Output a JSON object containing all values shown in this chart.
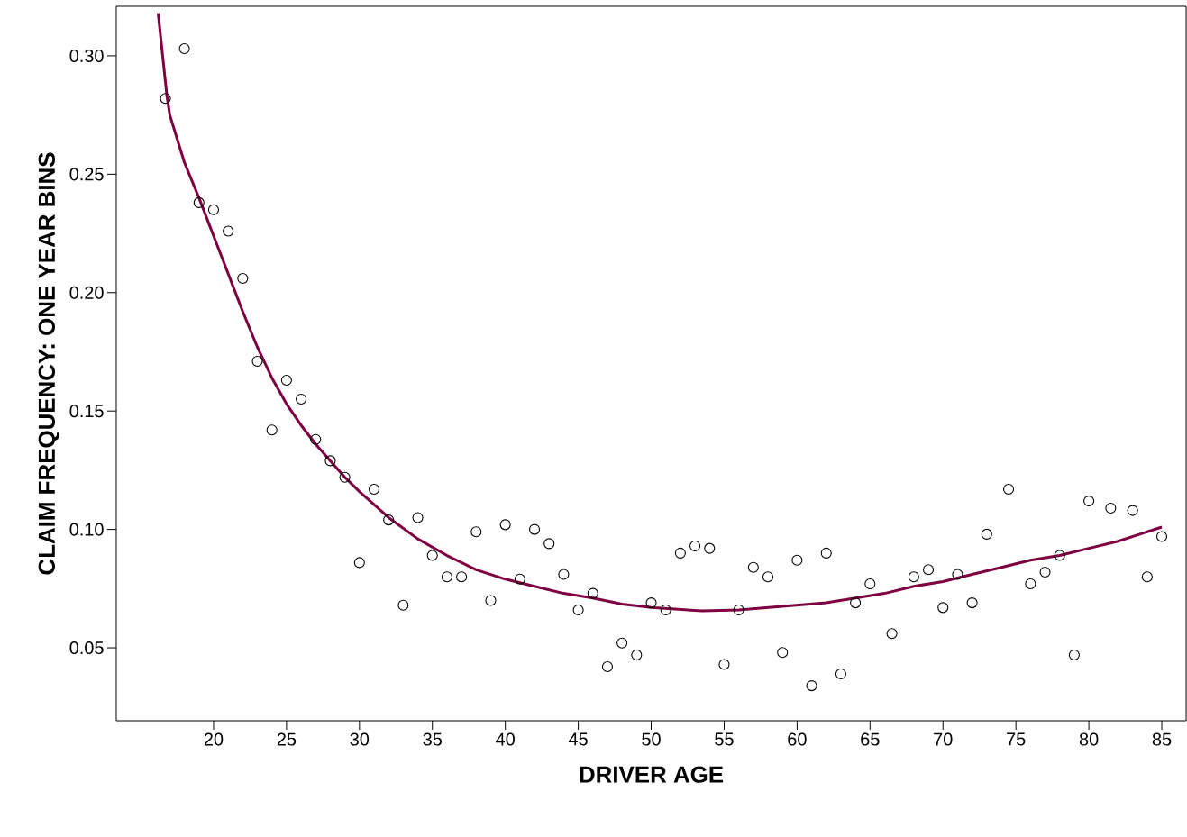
{
  "chart_data": {
    "type": "scatter",
    "xlabel": "DRIVER AGE",
    "ylabel": "CLAIM FREQUENCY: ONE YEAR BINS",
    "xlim": [
      13.33,
      86.67
    ],
    "ylim": [
      0.0192,
      0.3209
    ],
    "xticks": [
      20,
      25,
      30,
      35,
      40,
      45,
      50,
      55,
      60,
      65,
      70,
      75,
      80,
      85
    ],
    "yticks": [
      {
        "value": 0.05,
        "label": "0.05"
      },
      {
        "value": 0.1,
        "label": "0.10"
      },
      {
        "value": 0.15,
        "label": "0.15"
      },
      {
        "value": 0.2,
        "label": "0.20"
      },
      {
        "value": 0.25,
        "label": "0.25"
      },
      {
        "value": 0.3,
        "label": "0.30"
      }
    ],
    "marker": "circle",
    "series": [
      {
        "color": "#000000",
        "x": [
          16.7,
          18,
          19,
          20,
          21,
          22,
          23,
          24,
          25,
          26,
          27,
          28,
          29,
          30,
          31,
          32,
          33,
          34,
          35,
          36,
          37,
          38,
          39,
          40,
          41,
          42,
          43,
          44,
          45,
          46,
          47,
          48,
          49,
          50,
          51,
          52,
          53,
          54,
          55,
          56,
          57,
          58,
          59,
          60,
          61,
          62,
          63,
          64,
          65,
          66.5,
          68,
          69,
          70,
          71,
          72,
          73,
          74.5,
          76,
          77,
          78,
          79,
          80,
          81.5,
          83,
          84,
          85
        ],
        "values": [
          0.282,
          0.303,
          0.238,
          0.235,
          0.226,
          0.206,
          0.171,
          0.142,
          0.163,
          0.155,
          0.138,
          0.129,
          0.122,
          0.086,
          0.117,
          0.104,
          0.068,
          0.105,
          0.089,
          0.08,
          0.08,
          0.099,
          0.07,
          0.102,
          0.079,
          0.1,
          0.094,
          0.081,
          0.066,
          0.073,
          0.042,
          0.052,
          0.047,
          0.069,
          0.066,
          0.09,
          0.093,
          0.092,
          0.043,
          0.066,
          0.084,
          0.08,
          0.048,
          0.087,
          0.034,
          0.09,
          0.039,
          0.069,
          0.077,
          0.056,
          0.08,
          0.083,
          0.067,
          0.081,
          0.069,
          0.098,
          0.117,
          0.077,
          0.082,
          0.089,
          0.047,
          0.112,
          0.109,
          0.108,
          0.08,
          0.097
        ]
      },
      {
        "type": "line",
        "color": "#7f0040",
        "marker": "none",
        "line_style": "solid",
        "x": [
          16.2,
          16.8,
          17,
          18,
          19,
          20,
          21,
          22,
          23,
          24,
          25,
          26,
          27,
          28,
          29,
          30,
          32,
          34,
          36,
          38,
          40,
          42,
          44,
          46,
          48,
          50,
          53.5,
          56,
          58,
          60,
          62,
          64,
          66,
          68,
          70,
          72,
          74,
          76,
          78,
          80,
          82,
          84,
          85
        ],
        "values": [
          0.318,
          0.283,
          0.275,
          0.255,
          0.24,
          0.224,
          0.208,
          0.192,
          0.177,
          0.164,
          0.153,
          0.144,
          0.136,
          0.129,
          0.122,
          0.116,
          0.105,
          0.096,
          0.089,
          0.083,
          0.079,
          0.076,
          0.073,
          0.071,
          0.0685,
          0.067,
          0.0656,
          0.066,
          0.067,
          0.068,
          0.069,
          0.071,
          0.073,
          0.076,
          0.078,
          0.081,
          0.084,
          0.087,
          0.089,
          0.092,
          0.095,
          0.099,
          0.101
        ]
      }
    ]
  }
}
